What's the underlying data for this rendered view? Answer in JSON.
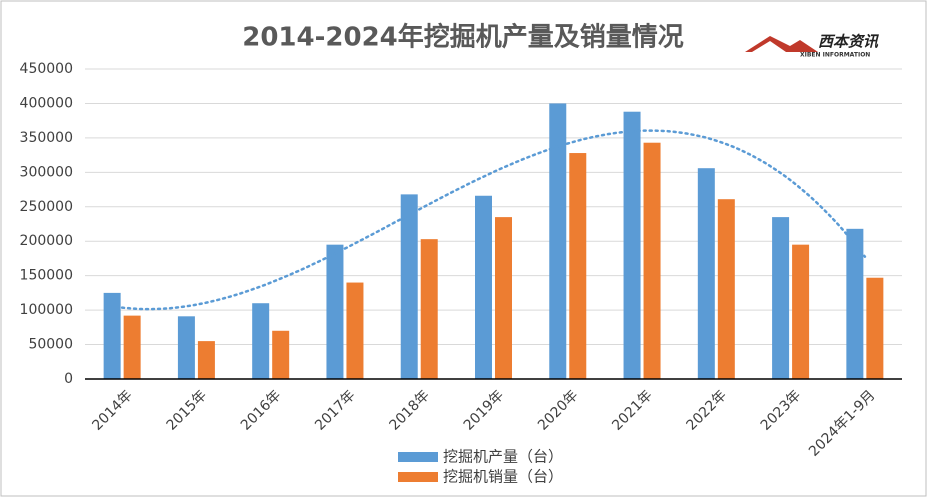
{
  "chart_data": {
    "type": "bar",
    "title": "2014-2024年挖掘机产量及销量情况",
    "logo": {
      "name": "西本资讯",
      "subtitle": "XIBEN INFORMATION"
    },
    "categories": [
      "2014年",
      "2015年",
      "2016年",
      "2017年",
      "2018年",
      "2019年",
      "2020年",
      "2021年",
      "2022年",
      "2023年",
      "2024年1-9月"
    ],
    "series": [
      {
        "name": "挖掘机产量（台）",
        "color": "#5b9bd5",
        "values": [
          125000,
          91000,
          110000,
          195000,
          268000,
          266000,
          400000,
          388000,
          306000,
          235000,
          218000
        ]
      },
      {
        "name": "挖掘机销量（台）",
        "color": "#ed7d31",
        "values": [
          92000,
          55000,
          70000,
          140000,
          203000,
          235000,
          328000,
          343000,
          261000,
          195000,
          147000
        ]
      }
    ],
    "trendline": {
      "series": 0,
      "order": 3,
      "color": "#5b9bd5"
    },
    "ylim": [
      0,
      450000
    ],
    "yticks": [
      0,
      50000,
      100000,
      150000,
      200000,
      250000,
      300000,
      350000,
      400000,
      450000
    ],
    "grid": true,
    "legend": "bottom"
  }
}
